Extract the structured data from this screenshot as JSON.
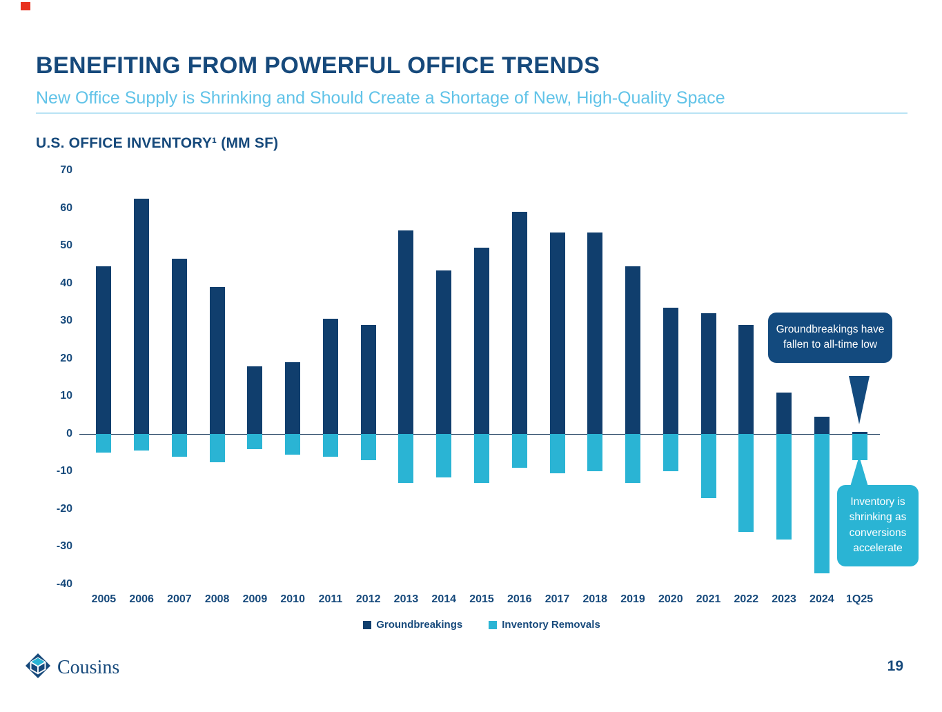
{
  "header": {
    "title": "BENEFITING FROM POWERFUL OFFICE TRENDS",
    "subtitle": "New Office Supply is Shrinking and Should Create a Shortage of New, High-Quality Space"
  },
  "chart": {
    "title": "U.S. OFFICE INVENTORY¹ (MM SF)"
  },
  "chart_data": {
    "type": "bar",
    "title": "U.S. OFFICE INVENTORY (MM SF)",
    "categories": [
      "2005",
      "2006",
      "2007",
      "2008",
      "2009",
      "2010",
      "2011",
      "2012",
      "2013",
      "2014",
      "2015",
      "2016",
      "2017",
      "2018",
      "2019",
      "2020",
      "2021",
      "2022",
      "2023",
      "2024",
      "1Q25"
    ],
    "series": [
      {
        "name": "Groundbreakings",
        "color": "#103e6d",
        "values": [
          44.5,
          62.5,
          46.5,
          39,
          18,
          19,
          30.5,
          29,
          54,
          43.5,
          49.5,
          59,
          53.5,
          53.5,
          44.5,
          33.5,
          32,
          29,
          11,
          4.5,
          0.5
        ]
      },
      {
        "name": "Inventory Removals",
        "color": "#2ab4d4",
        "values": [
          -5,
          -4.5,
          -6,
          -7.5,
          -4,
          -5.5,
          -6,
          -7,
          -13,
          -11.5,
          -13,
          -9,
          -10.5,
          -10,
          -13,
          -10,
          -17,
          -26,
          -28,
          -37,
          -7
        ]
      }
    ],
    "ylim": [
      -40,
      70
    ],
    "ytick_step": 10,
    "grid": false,
    "legend_position": "bottom",
    "annotations": [
      {
        "text": "Groundbreakings have fallen to all-time low",
        "target": "1Q25 Groundbreakings",
        "color": "#134a7e"
      },
      {
        "text": "Inventory is shrinking as conversions accelerate",
        "target": "1Q25 Inventory Removals",
        "color": "#2ab4d4"
      }
    ]
  },
  "footer": {
    "brand": "Cousins",
    "page_number": "19"
  },
  "colors": {
    "title_navy": "#16497b",
    "subtitle_blue": "#61c3e8",
    "bar_dark_blue": "#103e6d",
    "bar_teal": "#2ab4d4",
    "red_mark": "#e8321f"
  }
}
